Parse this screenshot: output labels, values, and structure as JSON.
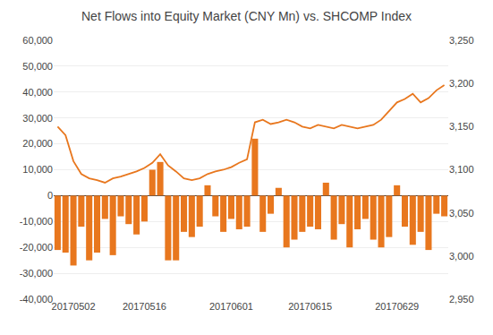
{
  "chart_data": {
    "type": "bar",
    "title": "Net Flows into Equity Market (CNY Mn) vs. SHCOMP Index",
    "categories": [
      null,
      null,
      "20170502",
      null,
      null,
      null,
      null,
      null,
      null,
      null,
      null,
      "20170516",
      null,
      null,
      null,
      null,
      null,
      null,
      null,
      null,
      null,
      null,
      "20170601",
      null,
      null,
      null,
      null,
      null,
      null,
      null,
      null,
      null,
      "20170615",
      null,
      null,
      null,
      null,
      null,
      null,
      null,
      null,
      null,
      null,
      "20170629",
      null,
      null,
      null,
      null,
      null,
      null
    ],
    "series": [
      {
        "type": "bar",
        "color": "#E8771E",
        "values": [
          -21000,
          -22000,
          -27000,
          -12000,
          -25000,
          -22000,
          -9000,
          -23000,
          -8000,
          -11000,
          -15000,
          -10000,
          10000,
          13000,
          -25000,
          -25000,
          -14000,
          -16000,
          -12000,
          4000,
          -8000,
          -14000,
          -9000,
          -13000,
          -12000,
          22000,
          -14000,
          -7000,
          3000,
          -20000,
          -17000,
          -14000,
          -12000,
          -13000,
          5000,
          -17000,
          -11000,
          -20000,
          -13000,
          -9000,
          -17000,
          -20000,
          -16000,
          4000,
          -12000,
          -19000,
          -14000,
          -21000,
          -7000,
          -8000
        ]
      },
      {
        "type": "line",
        "color": "#E8771E",
        "axis": "y2",
        "values": [
          3150,
          3140,
          3110,
          3095,
          3090,
          3088,
          3085,
          3090,
          3092,
          3095,
          3098,
          3102,
          3108,
          3118,
          3105,
          3098,
          3090,
          3088,
          3090,
          3095,
          3098,
          3100,
          3103,
          3108,
          3112,
          3155,
          3158,
          3153,
          3155,
          3158,
          3155,
          3150,
          3148,
          3152,
          3150,
          3148,
          3152,
          3150,
          3148,
          3150,
          3152,
          3158,
          3168,
          3178,
          3182,
          3188,
          3178,
          3183,
          3192,
          3198
        ]
      }
    ],
    "ylim": [
      -40000,
      60000
    ],
    "yticks": [
      {
        "value": -40000,
        "label": "-40,000"
      },
      {
        "value": -30000,
        "label": "-30,000"
      },
      {
        "value": -20000,
        "label": "-20,000"
      },
      {
        "value": -10000,
        "label": "-10,000"
      },
      0,
      {
        "value": 10000,
        "label": "10,000"
      },
      {
        "value": 20000,
        "label": "20,000"
      },
      {
        "value": 30000,
        "label": "30,000"
      },
      {
        "value": 40000,
        "label": "40,000"
      },
      {
        "value": 50000,
        "label": "50,000"
      },
      {
        "value": 60000,
        "label": "60,000"
      }
    ],
    "y2lim": [
      2950,
      3250
    ],
    "y2ticks": [
      {
        "value": 2950,
        "label": "2,950"
      },
      {
        "value": 3000,
        "label": "3,000"
      },
      {
        "value": 3050,
        "label": "3,050"
      },
      {
        "value": 3100,
        "label": "3,100"
      },
      {
        "value": 3150,
        "label": "3,150"
      },
      {
        "value": 3200,
        "label": "3,200"
      },
      {
        "value": 3250,
        "label": "3,250"
      }
    ],
    "grid": true
  }
}
